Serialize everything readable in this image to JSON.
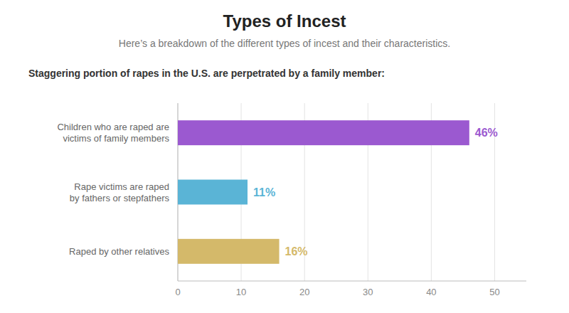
{
  "chart_data": {
    "type": "bar",
    "orientation": "horizontal",
    "title": "Types of Incest",
    "subtitle": "Here’s a breakdown of the different types of incest and their characteristics.",
    "annotations": [
      "Staggering portion of rapes in the U.S. are perpetrated by a family member:"
    ],
    "categories": [
      "Raped by other relatives",
      "Rape victims are raped\nby fathers or stepfathers",
      "Children who are raped are\nvictims of family members"
    ],
    "values": [
      16,
      11,
      46
    ],
    "value_labels": [
      "16%",
      "11%",
      "46%"
    ],
    "colors": [
      "#d4b96a",
      "#5ab4d6",
      "#9b59d0"
    ],
    "xlim": [
      0,
      55
    ],
    "xticks": [
      0,
      10,
      20,
      30,
      40,
      50
    ],
    "grid": true,
    "data_labels": true
  }
}
